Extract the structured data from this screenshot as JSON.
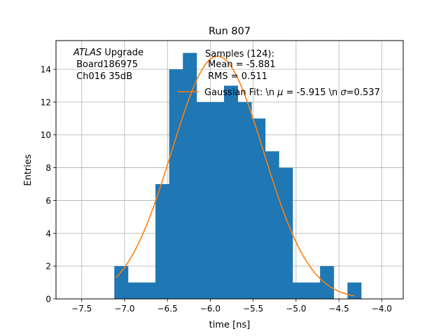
{
  "chart_data": {
    "type": "bar",
    "title": "Run 807",
    "xlabel": "time [ns]",
    "ylabel": "Entries",
    "xlim": [
      -7.8,
      -3.75
    ],
    "ylim": [
      0,
      15.75
    ],
    "grid": true,
    "x_ticks": [
      -7.5,
      -7.0,
      -6.5,
      -6.0,
      -5.5,
      -5.0,
      -4.5,
      -4.0
    ],
    "x_tick_labels": [
      "−7.5",
      "−7.0",
      "−6.5",
      "−6.0",
      "−5.5",
      "−5.0",
      "−4.5",
      "−4.0"
    ],
    "y_ticks": [
      0,
      2,
      4,
      6,
      8,
      10,
      12,
      14
    ],
    "y_tick_labels": [
      "0",
      "2",
      "4",
      "6",
      "8",
      "10",
      "12",
      "14"
    ],
    "histogram": {
      "bin_edges": [
        -7.12,
        -6.96,
        -6.8,
        -6.64,
        -6.48,
        -6.32,
        -6.16,
        -6.0,
        -5.84,
        -5.68,
        -5.52,
        -5.36,
        -5.2,
        -5.04,
        -4.88,
        -4.72,
        -4.56,
        -4.4,
        -4.24
      ],
      "counts": [
        2,
        1,
        1,
        7,
        14,
        15,
        12,
        12,
        13,
        12,
        11,
        9,
        8,
        1,
        1,
        2,
        0,
        1
      ],
      "color": "#1f77b4"
    },
    "fit_curve": {
      "name": "Gaussian Fit: \\n μ = -5.915 \\n σ=0.537",
      "mu": -5.915,
      "sigma": 0.537,
      "amplitude": 14.8,
      "x_range": [
        -7.1,
        -4.32
      ],
      "color": "#ff7f0e"
    },
    "annotations": {
      "atlas_italic": "ATLAS",
      "atlas_rest": " Upgrade",
      "board": " Board186975",
      "channel": " Ch016 35dB"
    },
    "stats": {
      "line1": "Samples (124):",
      "line2": " Mean = -5.881",
      "line3": " RMS = 0.511"
    },
    "legend": {
      "placement": "upper-right",
      "label_prefix": "Gaussian Fit: \\n ",
      "mu_symbol": "μ",
      "mu_part": " = -5.915 \\n ",
      "sigma_symbol": "σ",
      "sigma_part": "=0.537"
    }
  }
}
